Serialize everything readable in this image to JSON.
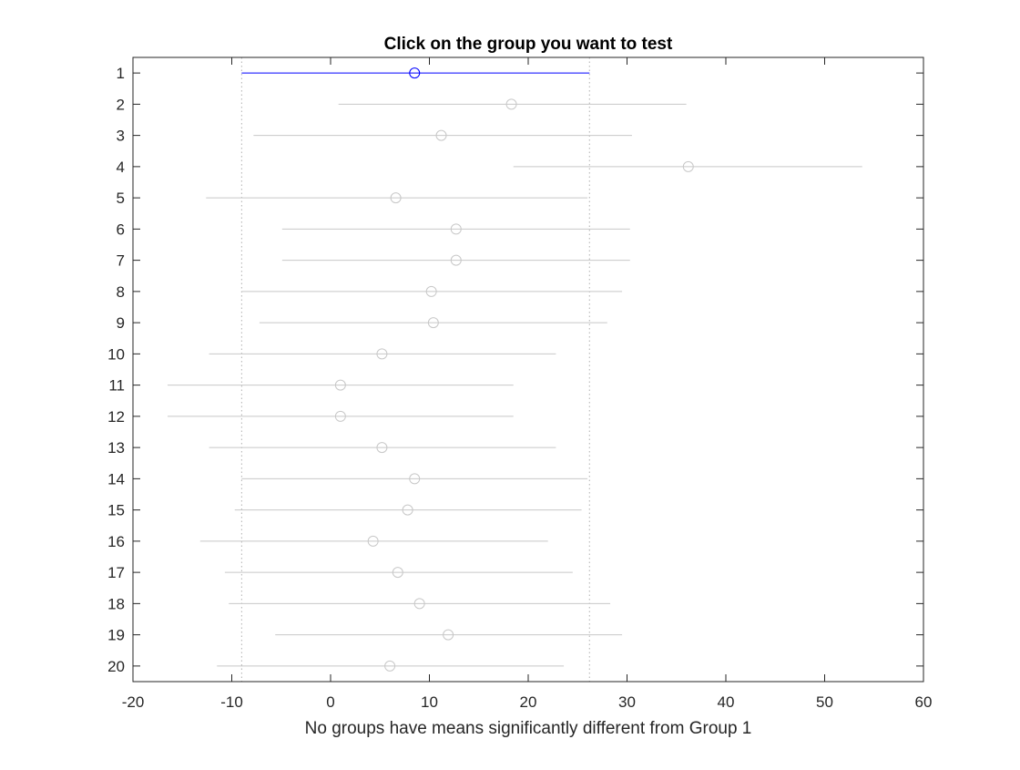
{
  "chart_data": {
    "type": "scatter",
    "title": "Click on the group you want to test",
    "xlabel": "No groups have means significantly different from Group 1",
    "ylabel": "",
    "xlim": [
      -20,
      60
    ],
    "ylim": [
      0.5,
      20.5
    ],
    "y_reversed": true,
    "xticks": [
      "-20",
      "-10",
      "0",
      "10",
      "20",
      "30",
      "40",
      "50",
      "60"
    ],
    "yticks": [
      "1",
      "2",
      "3",
      "4",
      "5",
      "6",
      "7",
      "8",
      "9",
      "10",
      "11",
      "12",
      "13",
      "14",
      "15",
      "16",
      "17",
      "18",
      "19",
      "20"
    ],
    "grid": false,
    "selected_group": 1,
    "reference_lines": [
      -9.0,
      26.2
    ],
    "colors": {
      "selected": "#0000ff",
      "other": "#c8c8c8",
      "reference": "#b0b0b0",
      "axes": "#262626"
    },
    "groups": [
      {
        "label": "1",
        "mean": 8.5,
        "lower": -9.0,
        "upper": 26.2
      },
      {
        "label": "2",
        "mean": 18.3,
        "lower": 0.8,
        "upper": 36.0
      },
      {
        "label": "3",
        "mean": 11.2,
        "lower": -7.8,
        "upper": 30.5
      },
      {
        "label": "4",
        "mean": 36.2,
        "lower": 18.5,
        "upper": 53.8
      },
      {
        "label": "5",
        "mean": 6.6,
        "lower": -12.6,
        "upper": 26.0
      },
      {
        "label": "6",
        "mean": 12.7,
        "lower": -4.9,
        "upper": 30.3
      },
      {
        "label": "7",
        "mean": 12.7,
        "lower": -4.9,
        "upper": 30.3
      },
      {
        "label": "8",
        "mean": 10.2,
        "lower": -9.0,
        "upper": 29.5
      },
      {
        "label": "9",
        "mean": 10.4,
        "lower": -7.2,
        "upper": 28.0
      },
      {
        "label": "10",
        "mean": 5.2,
        "lower": -12.3,
        "upper": 22.8
      },
      {
        "label": "11",
        "mean": 1.0,
        "lower": -16.5,
        "upper": 18.5
      },
      {
        "label": "12",
        "mean": 1.0,
        "lower": -16.5,
        "upper": 18.5
      },
      {
        "label": "13",
        "mean": 5.2,
        "lower": -12.3,
        "upper": 22.8
      },
      {
        "label": "14",
        "mean": 8.5,
        "lower": -9.0,
        "upper": 26.0
      },
      {
        "label": "15",
        "mean": 7.8,
        "lower": -9.7,
        "upper": 25.4
      },
      {
        "label": "16",
        "mean": 4.3,
        "lower": -13.2,
        "upper": 22.0
      },
      {
        "label": "17",
        "mean": 6.8,
        "lower": -10.7,
        "upper": 24.5
      },
      {
        "label": "18",
        "mean": 9.0,
        "lower": -10.3,
        "upper": 28.3
      },
      {
        "label": "19",
        "mean": 11.9,
        "lower": -5.6,
        "upper": 29.5
      },
      {
        "label": "20",
        "mean": 6.0,
        "lower": -11.5,
        "upper": 23.6
      }
    ]
  }
}
